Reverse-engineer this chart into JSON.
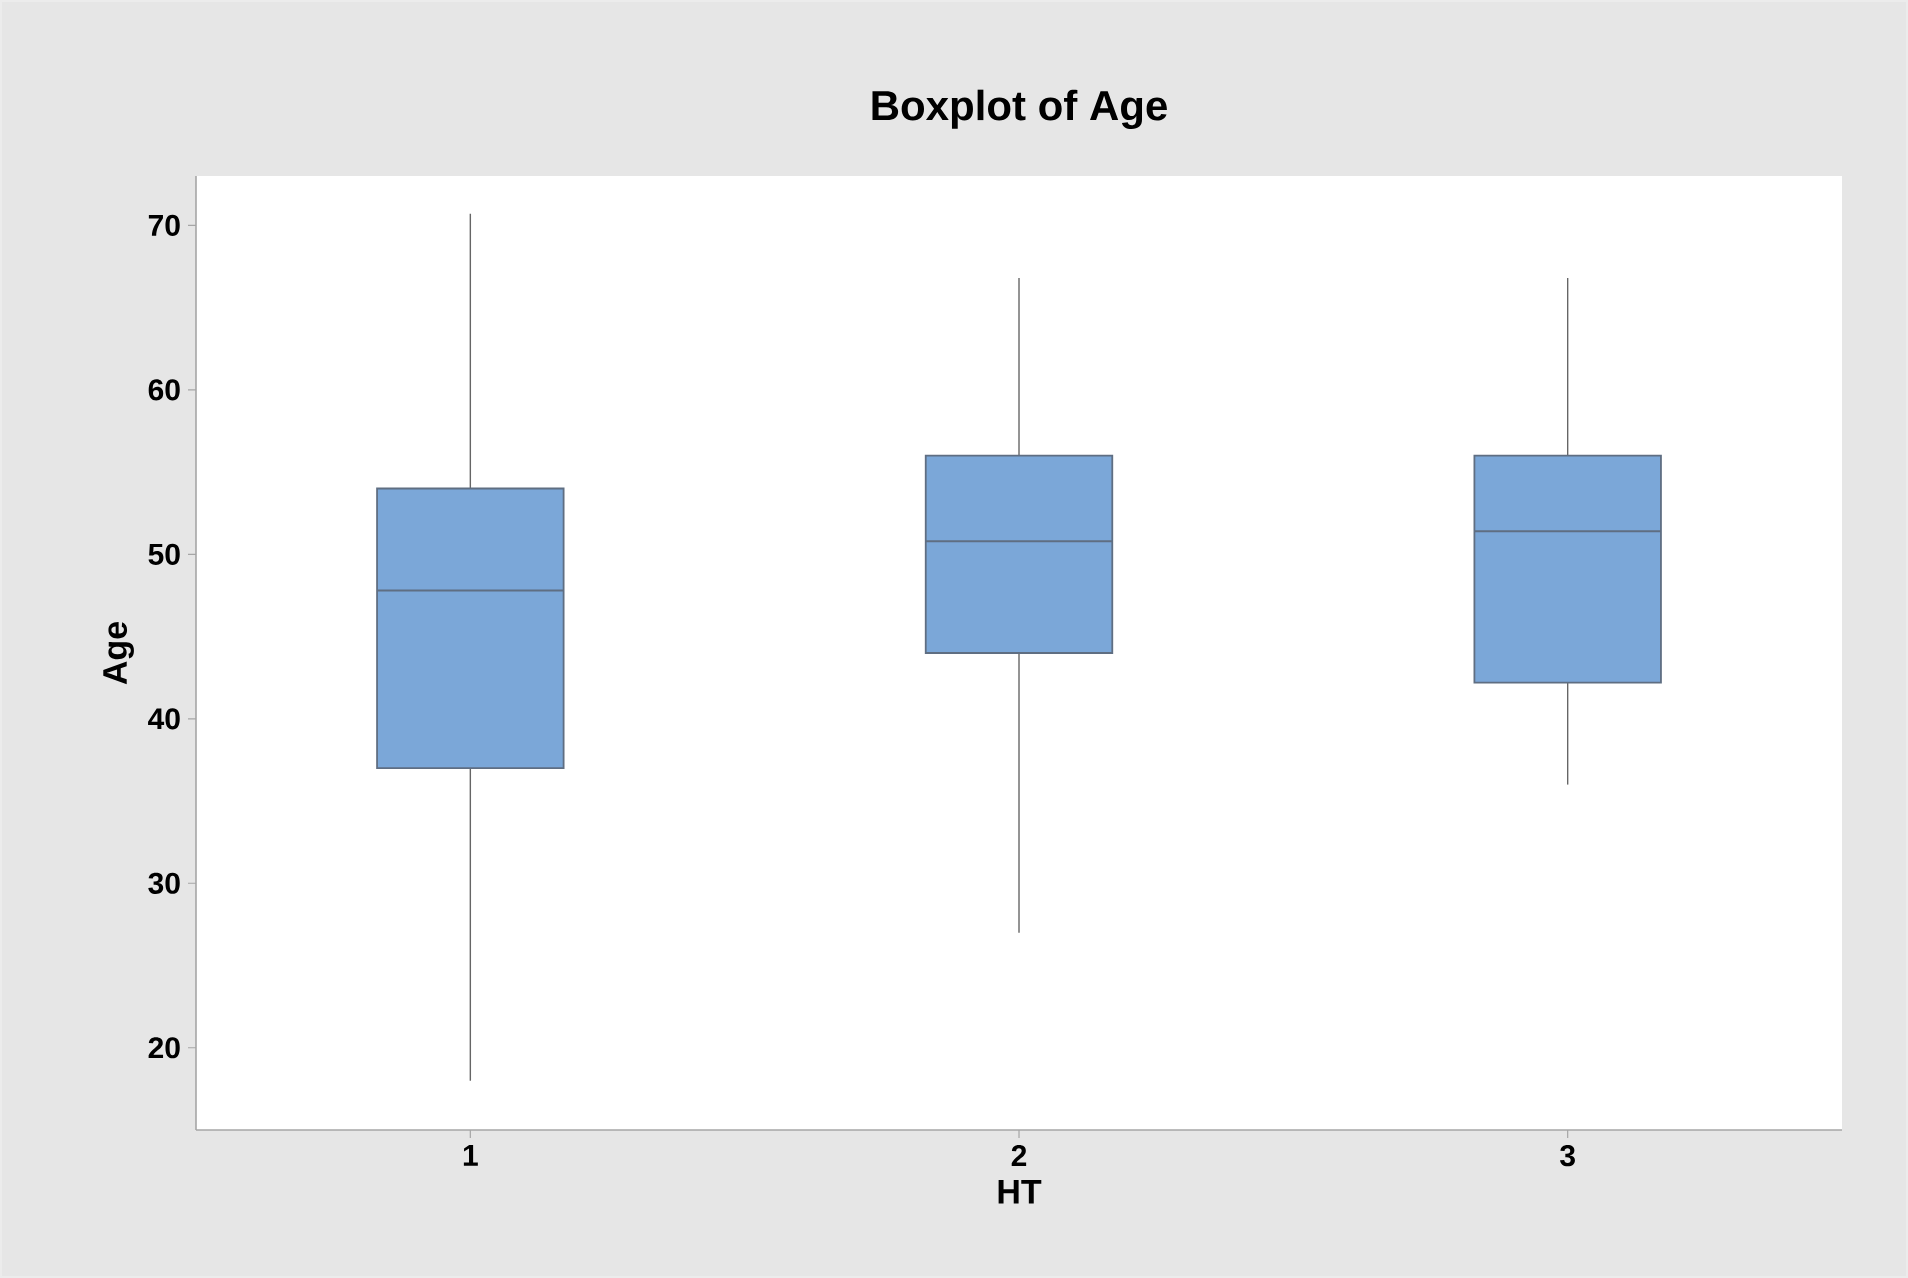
{
  "chart_data": {
    "type": "box",
    "title": "Boxplot of Age",
    "xlabel": "HT",
    "ylabel": "Age",
    "categories": [
      "1",
      "2",
      "3"
    ],
    "color": "#7ba7d8",
    "boxes": [
      {
        "low": 18,
        "q1": 37,
        "median": 47.8,
        "q3": 54,
        "high": 70.7
      },
      {
        "low": 27,
        "q1": 44,
        "median": 50.8,
        "q3": 56,
        "high": 66.8
      },
      {
        "low": 36,
        "q1": 42.2,
        "median": 51.4,
        "q3": 56,
        "high": 66.8
      }
    ],
    "ylim": [
      15,
      73
    ],
    "yticks": [
      20,
      30,
      40,
      50,
      60,
      70
    ]
  }
}
